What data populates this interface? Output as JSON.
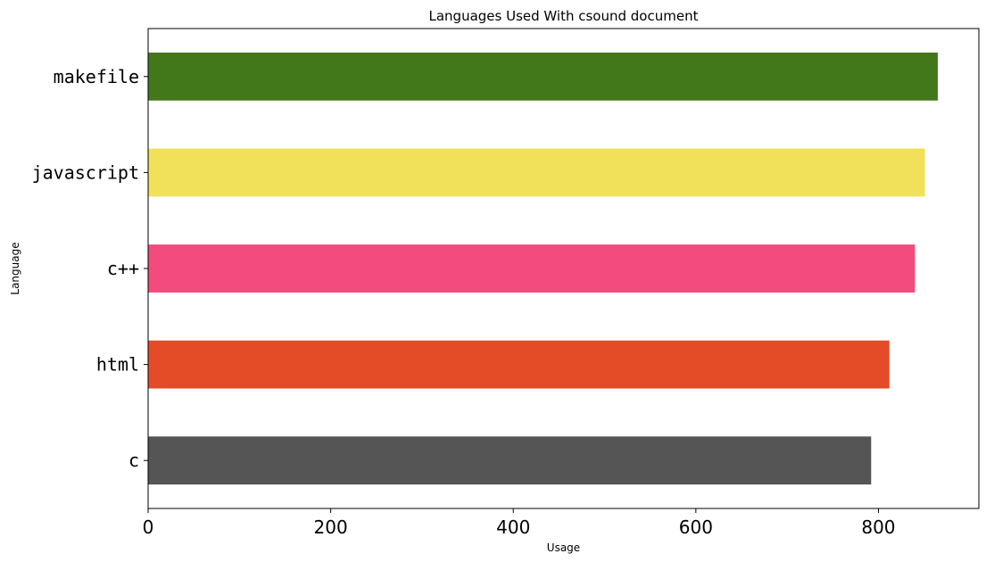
{
  "chart_data": {
    "type": "bar",
    "orientation": "horizontal",
    "title": "Languages Used With csound document",
    "xlabel": "Usage",
    "ylabel": "Language",
    "categories": [
      "c",
      "html",
      "c++",
      "javascript",
      "makefile"
    ],
    "values": [
      792,
      812,
      840,
      851,
      865
    ],
    "colors": [
      "#555555",
      "#e34c26",
      "#f34b7d",
      "#f1e05a",
      "#427819"
    ],
    "xlim": [
      0,
      910
    ],
    "xticks": [
      0,
      200,
      400,
      600,
      800
    ],
    "grid": false,
    "legend": "none"
  }
}
